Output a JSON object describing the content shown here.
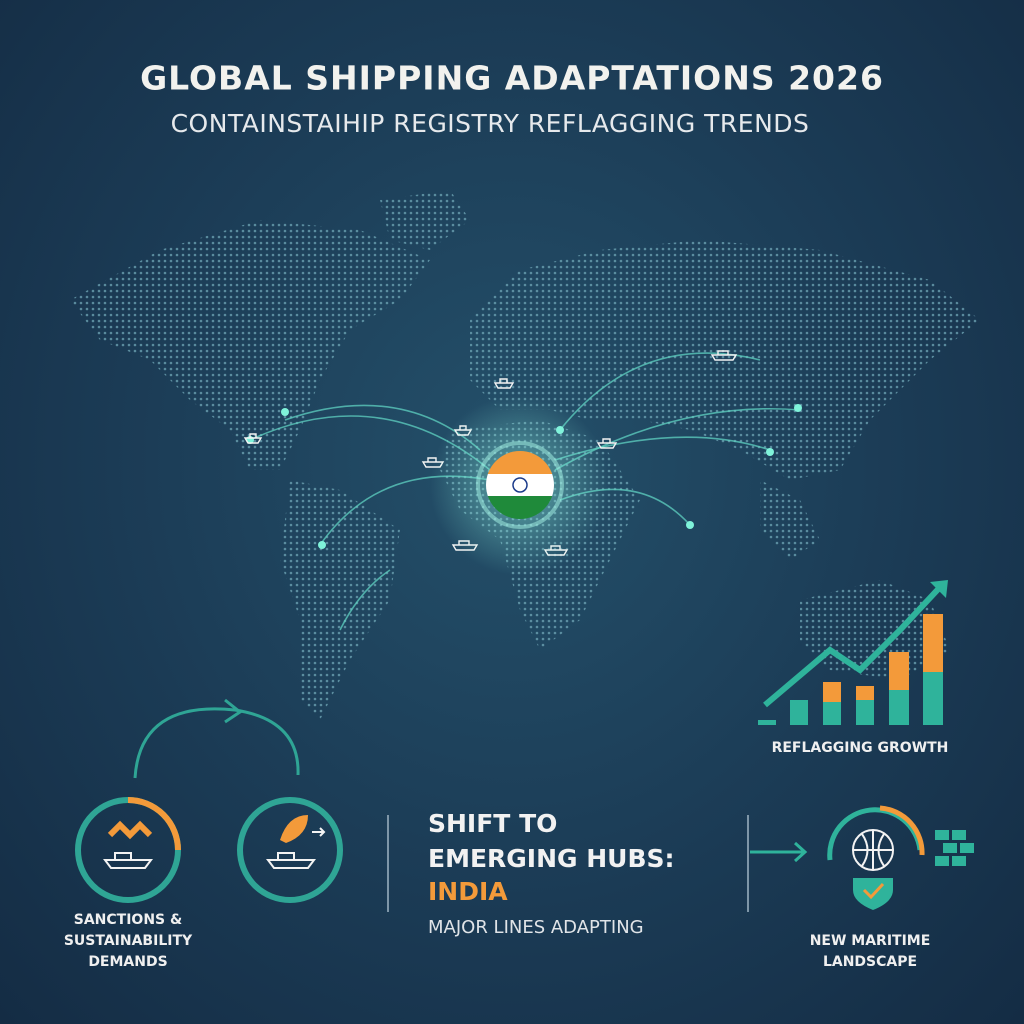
{
  "header": {
    "title": "GLOBAL SHIPPING ADAPTATIONS 2026",
    "subtitle": "CONTAINSTAIHIP REGISTRY REFLAGGING TRENDS"
  },
  "growth_chart": {
    "label": "REFLAGGING GROWTH"
  },
  "left_panel": {
    "lines": [
      "SANCTIONS &",
      "SUSTAINABILITY",
      "DEMANDS"
    ]
  },
  "center_panel": {
    "lines": [
      "SHIFT TO",
      "EMERGING HUBS:"
    ],
    "highlight": "INDIA",
    "caption": "MAJOR LINES ADAPTING"
  },
  "right_panel": {
    "lines": [
      "NEW MARITIME",
      "LANDSCAPE"
    ]
  }
}
